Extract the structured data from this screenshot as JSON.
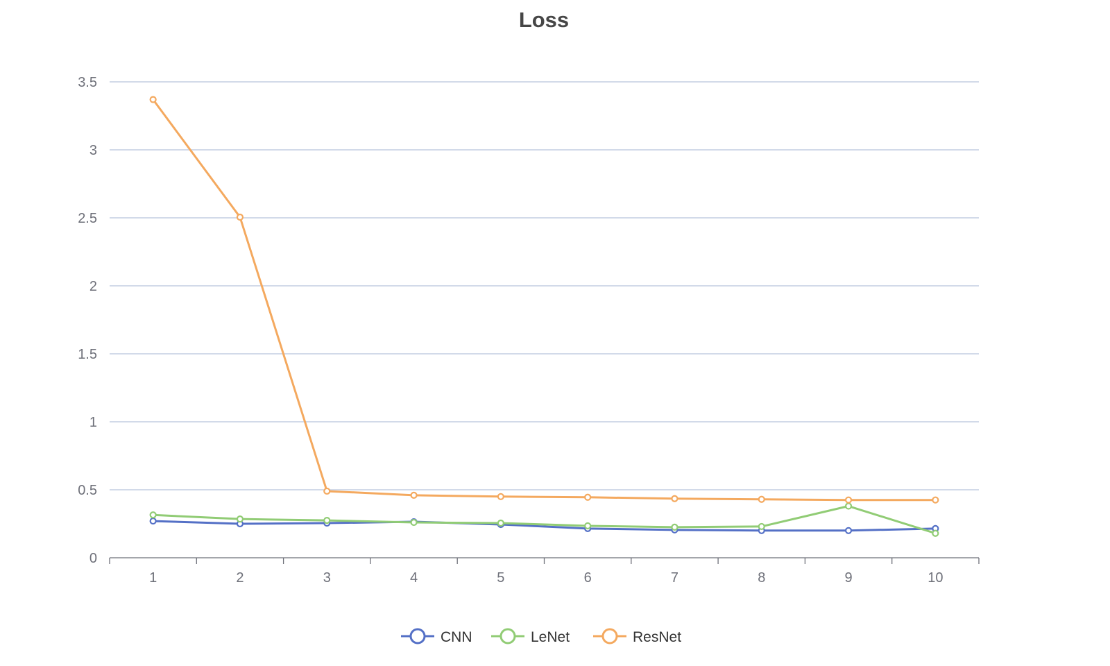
{
  "chart_data": {
    "type": "line",
    "title": "Loss",
    "xlabel": "",
    "ylabel": "",
    "categories": [
      "1",
      "2",
      "3",
      "4",
      "5",
      "6",
      "7",
      "8",
      "9",
      "10"
    ],
    "ylim": [
      0,
      3.5
    ],
    "yticks": [
      "0",
      "0.5",
      "1",
      "1.5",
      "2",
      "2.5",
      "3",
      "3.5"
    ],
    "ytick_values": [
      0,
      0.5,
      1,
      1.5,
      2,
      2.5,
      3,
      3.5
    ],
    "grid": true,
    "legend_position": "bottom-center",
    "series": [
      {
        "name": "CNN",
        "color": "#5470c6",
        "values": [
          0.27,
          0.25,
          0.255,
          0.265,
          0.245,
          0.215,
          0.205,
          0.2,
          0.2,
          0.215
        ]
      },
      {
        "name": "LeNet",
        "color": "#91cc75",
        "values": [
          0.315,
          0.285,
          0.275,
          0.26,
          0.255,
          0.235,
          0.225,
          0.23,
          0.38,
          0.18
        ]
      },
      {
        "name": "ResNet",
        "color": "#f4a95f",
        "values": [
          3.37,
          2.505,
          0.49,
          0.46,
          0.45,
          0.445,
          0.435,
          0.43,
          0.425,
          0.425
        ]
      }
    ]
  }
}
